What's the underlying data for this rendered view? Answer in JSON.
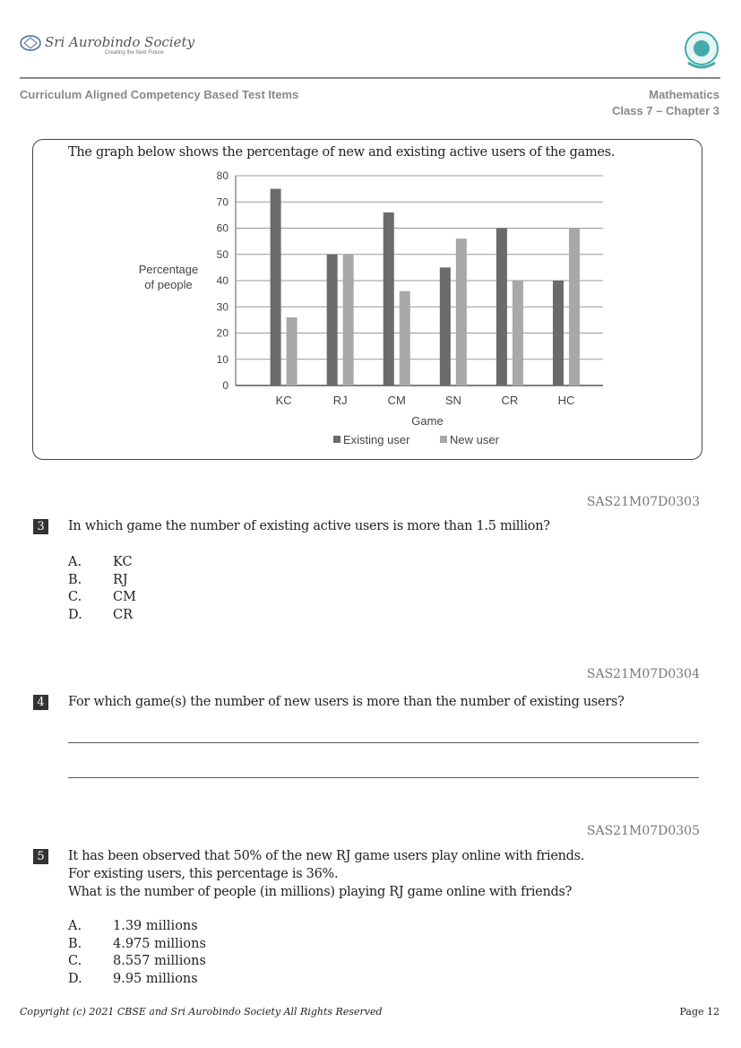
{
  "header": {
    "logo_text": "Sri Aurobindo Society",
    "logo_tagline": "Creating the Next Future",
    "left": "Curriculum Aligned Competency Based Test Items",
    "subject": "Mathematics",
    "class_chapter": "Class 7 – Chapter 3"
  },
  "intro": "The graph below shows the percentage of new and existing active users of the games.",
  "chart_data": {
    "type": "bar",
    "categories": [
      "KC",
      "RJ",
      "CM",
      "SN",
      "CR",
      "HC"
    ],
    "series": [
      {
        "name": "Existing user",
        "values": [
          75,
          50,
          66,
          45,
          60,
          40
        ],
        "color": "#6b6b6b"
      },
      {
        "name": "New user",
        "values": [
          26,
          50,
          36,
          56,
          40,
          60
        ],
        "color": "#a8a8a8"
      }
    ],
    "xlabel": "Game",
    "ylabel_lines": [
      "Percentage",
      "of people"
    ],
    "ylim": [
      0,
      80
    ],
    "yticks": [
      0,
      10,
      20,
      30,
      40,
      50,
      60,
      70,
      80
    ],
    "grid": true,
    "legend": "bottom"
  },
  "questions": [
    {
      "code": "SAS21M07D0303",
      "num": "3",
      "text": "In which game the number of existing active users is more than 1.5 million?",
      "options": [
        {
          "l": "A.",
          "t": "KC"
        },
        {
          "l": "B.",
          "t": "RJ"
        },
        {
          "l": "C.",
          "t": "CM"
        },
        {
          "l": "D.",
          "t": "CR"
        }
      ]
    },
    {
      "code": "SAS21M07D0304",
      "num": "4",
      "text": "For which game(s) the number of new users is more than the number of existing users?"
    },
    {
      "code": "SAS21M07D0305",
      "num": "5",
      "lines": [
        "It has been observed that 50% of the new RJ game users play online with friends.",
        "For existing users, this percentage is 36%.",
        "What is the number of people (in millions) playing RJ game online with friends?"
      ],
      "options": [
        {
          "l": "A.",
          "t": "1.39 millions"
        },
        {
          "l": "B.",
          "t": "4.975 millions"
        },
        {
          "l": "C.",
          "t": "8.557 millions"
        },
        {
          "l": "D.",
          "t": "9.95 millions"
        }
      ]
    }
  ],
  "footer": {
    "copyright": "Copyright (c) 2021 CBSE and Sri Aurobindo Society All Rights Reserved",
    "page": "Page 12"
  }
}
